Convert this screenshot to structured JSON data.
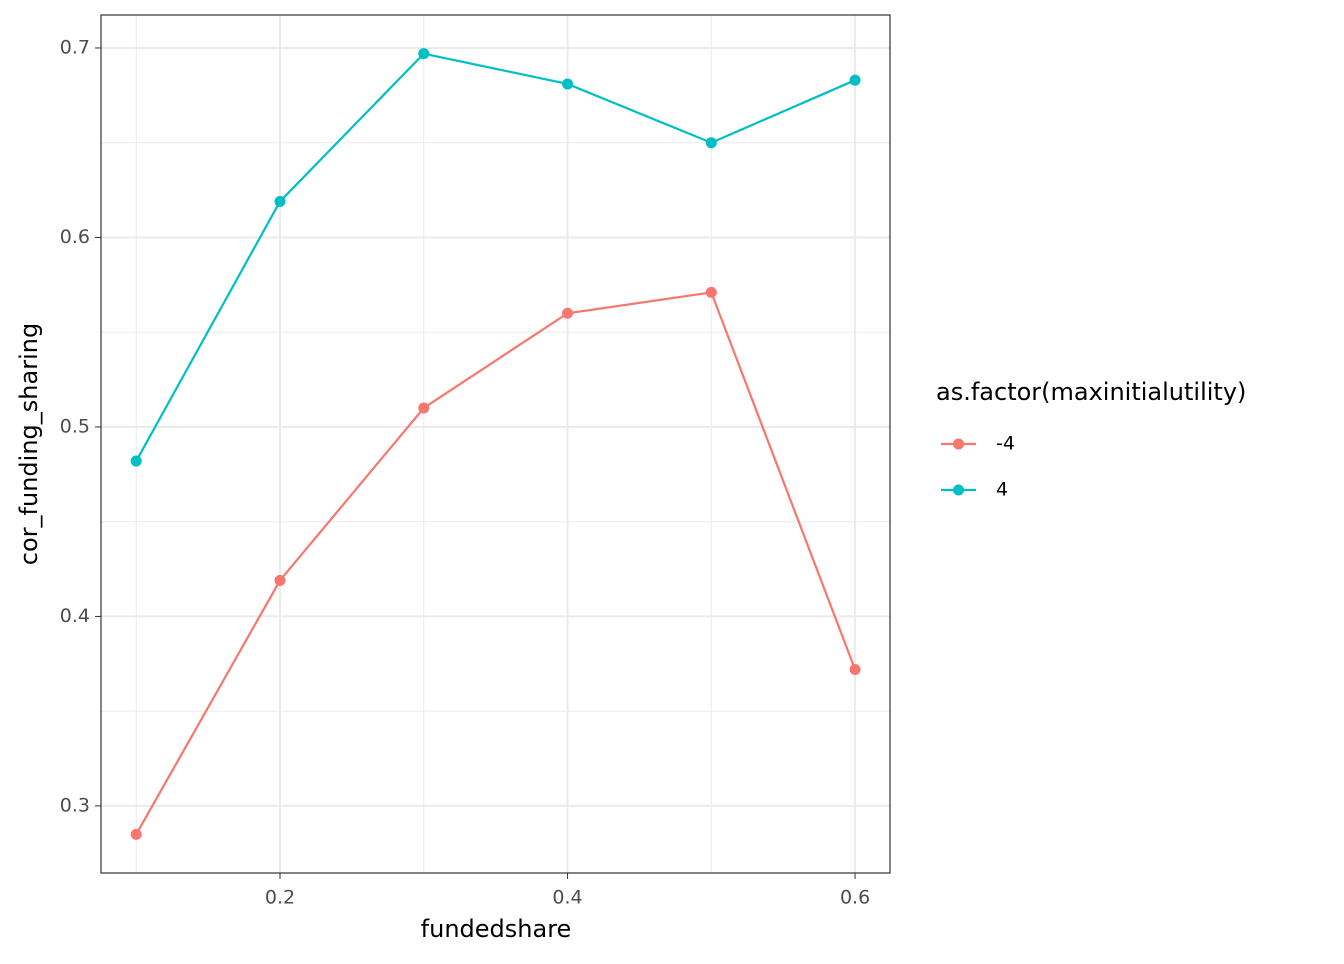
{
  "chart_data": {
    "type": "line",
    "x_label": "fundedshare",
    "y_label": "cor_funding_sharing",
    "legend_title": "as.factor(maxinitialutility)",
    "x": [
      0.1,
      0.2,
      0.3,
      0.4,
      0.5,
      0.6
    ],
    "series": [
      {
        "name": "-4",
        "color": "#f8766d",
        "values": [
          0.285,
          0.419,
          0.51,
          0.56,
          0.571,
          0.372
        ]
      },
      {
        "name": "4",
        "color": "#00bfc4",
        "values": [
          0.482,
          0.619,
          0.697,
          0.681,
          0.65,
          0.683
        ]
      }
    ],
    "xlim": [
      0.0755,
      0.6243
    ],
    "ylim": [
      0.2646,
      0.7174
    ],
    "xticks": [
      0.2,
      0.4,
      0.6
    ],
    "yticks": [
      0.3,
      0.4,
      0.5,
      0.6,
      0.7
    ],
    "grid": true,
    "legend": "right"
  }
}
